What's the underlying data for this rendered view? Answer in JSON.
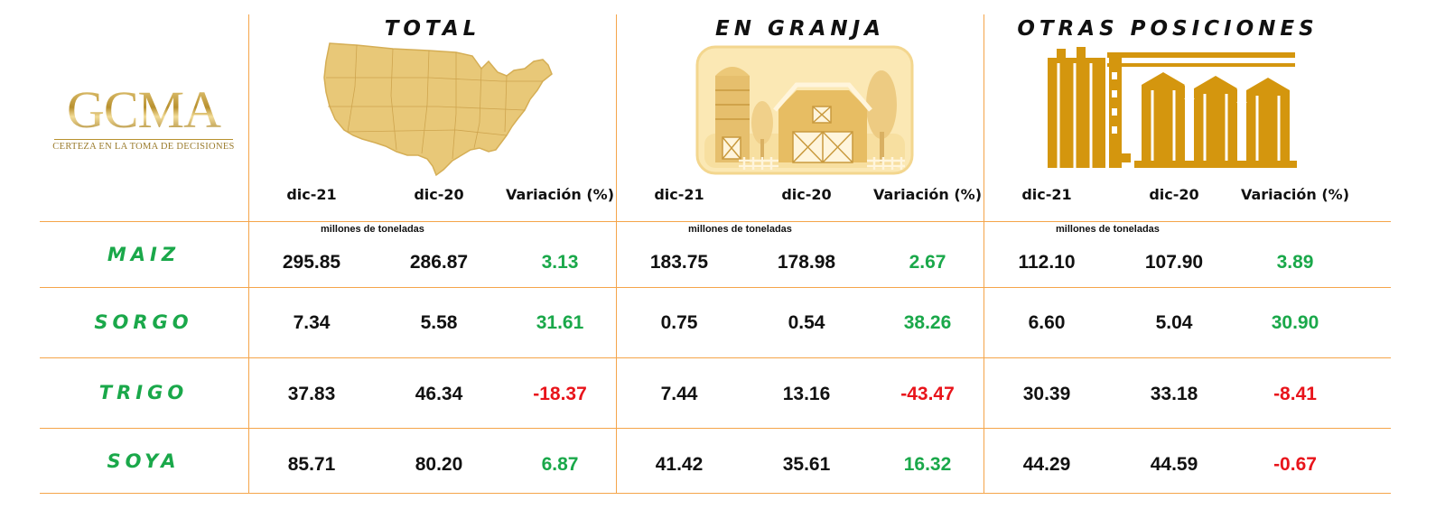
{
  "brand": {
    "logo_text": "GCMA",
    "tagline": "CERTEZA EN LA TOMA DE DECISIONES"
  },
  "groups": [
    {
      "title": "TOTAL",
      "icon": "usa-map-icon",
      "unit": "millones de toneladas"
    },
    {
      "title": "EN GRANJA",
      "icon": "farm-barn-icon",
      "unit": "millones de toneladas"
    },
    {
      "title": "OTRAS POSICIONES",
      "icon": "grain-silos-icon",
      "unit": "millones de toneladas"
    }
  ],
  "column_headers": [
    "dic-21",
    "dic-20",
    "Variación (%)"
  ],
  "colors": {
    "accent_line": "#f5a54a",
    "positive": "#1aa84a",
    "negative": "#e8141b",
    "gold": "#d4a017"
  },
  "chart_data": {
    "type": "table",
    "columns": [
      "TOTAL dic-21",
      "TOTAL dic-20",
      "TOTAL Variación (%)",
      "EN GRANJA dic-21",
      "EN GRANJA dic-20",
      "EN GRANJA Variación (%)",
      "OTRAS POSICIONES dic-21",
      "OTRAS POSICIONES dic-20",
      "OTRAS POSICIONES Variación (%)"
    ],
    "rows": [
      {
        "label": "MAIZ",
        "values": [
          "295.85",
          "286.87",
          "3.13",
          "183.75",
          "178.98",
          "2.67",
          "112.10",
          "107.90",
          "3.89"
        ]
      },
      {
        "label": "SORGO",
        "values": [
          "7.34",
          "5.58",
          "31.61",
          "0.75",
          "0.54",
          "38.26",
          "6.60",
          "5.04",
          "30.90"
        ]
      },
      {
        "label": "TRIGO",
        "values": [
          "37.83",
          "46.34",
          "-18.37",
          "7.44",
          "13.16",
          "-43.47",
          "30.39",
          "33.18",
          "-8.41"
        ]
      },
      {
        "label": "SOYA",
        "values": [
          "85.71",
          "80.20",
          "6.87",
          "41.42",
          "35.61",
          "16.32",
          "44.29",
          "44.59",
          "-0.67"
        ]
      }
    ]
  }
}
